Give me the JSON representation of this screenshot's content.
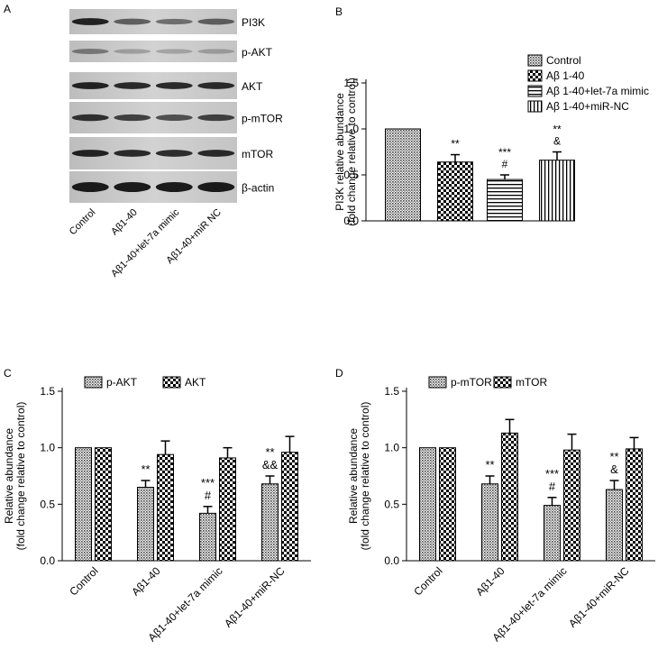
{
  "panel_A": {
    "label": "A",
    "bands": [
      "PI3K",
      "p-AKT",
      "AKT",
      "p-mTOR",
      "mTOR",
      "β-actin"
    ],
    "lanes": [
      "Control",
      "Aβ1-40",
      "Aβ1-40+let-7a mimic",
      "Aβ1-40+miR NC"
    ]
  },
  "chart_data": [
    {
      "panel": "B",
      "type": "bar",
      "categories": [
        "Control",
        "Aβ 1-40",
        "Aβ 1-40+let-7a mimic",
        "Aβ 1-40+miR-NC"
      ],
      "series": [
        {
          "values": [
            1.0,
            0.64,
            0.45,
            0.66
          ],
          "errors": [
            0,
            0.08,
            0.05,
            0.09
          ],
          "patterns": [
            "dots",
            "checker",
            "hstripes",
            "vstripes"
          ]
        }
      ],
      "legend": [
        "Control",
        "Aβ 1-40",
        "Aβ 1-40+let-7a mimic",
        "Aβ 1-40+miR-NC"
      ],
      "legend_position": "top-right",
      "annotations": [
        [],
        [
          "**"
        ],
        [
          "***",
          "#"
        ],
        [
          "**",
          "&"
        ]
      ],
      "ylabel": [
        "PI3K relative abundance",
        "(fold change relative to control)"
      ],
      "ylim": [
        0,
        1.5
      ],
      "yticks": [
        "0.0",
        "0.5",
        "1.0",
        "1.5"
      ],
      "show_xlabels": false
    },
    {
      "panel": "C",
      "type": "bar",
      "categories": [
        "Control",
        "Aβ1-40",
        "Aβ1-40+let-7a mimic",
        "Aβ1-40+miR-NC"
      ],
      "series": [
        {
          "name": "p-AKT",
          "values": [
            1.0,
            0.65,
            0.42,
            0.68
          ],
          "errors": [
            0,
            0.06,
            0.06,
            0.07
          ],
          "pattern": "dots"
        },
        {
          "name": "AKT",
          "values": [
            1.0,
            0.94,
            0.91,
            0.96
          ],
          "errors": [
            0,
            0.12,
            0.09,
            0.14
          ],
          "pattern": "checker"
        }
      ],
      "legend_position": "top",
      "annotations": [
        [],
        [
          "**"
        ],
        [
          "***",
          "#"
        ],
        [
          "**",
          "&&"
        ]
      ],
      "ylabel": [
        "Relative abundance",
        "(fold change relative to control)"
      ],
      "ylim": [
        0,
        1.5
      ],
      "yticks": [
        "0.0",
        "0.5",
        "1.0",
        "1.5"
      ],
      "show_xlabels": true
    },
    {
      "panel": "D",
      "type": "bar",
      "categories": [
        "Control",
        "Aβ1-40",
        "Aβ1-40+let-7a mimic",
        "Aβ1-40+miR-NC"
      ],
      "series": [
        {
          "name": "p-mTOR",
          "values": [
            1.0,
            0.68,
            0.49,
            0.63
          ],
          "errors": [
            0,
            0.07,
            0.07,
            0.08
          ],
          "pattern": "dots"
        },
        {
          "name": "mTOR",
          "values": [
            1.0,
            1.13,
            0.98,
            0.99
          ],
          "errors": [
            0,
            0.12,
            0.14,
            0.1
          ],
          "pattern": "checker"
        }
      ],
      "legend_position": "top",
      "annotations": [
        [],
        [
          "**"
        ],
        [
          "***",
          "#"
        ],
        [
          "**",
          "&"
        ]
      ],
      "ylabel": [
        "Relative abundance",
        "(fold change relative to control)"
      ],
      "ylim": [
        0,
        1.5
      ],
      "yticks": [
        "0.0",
        "0.5",
        "1.0",
        "1.5"
      ],
      "show_xlabels": true
    }
  ]
}
